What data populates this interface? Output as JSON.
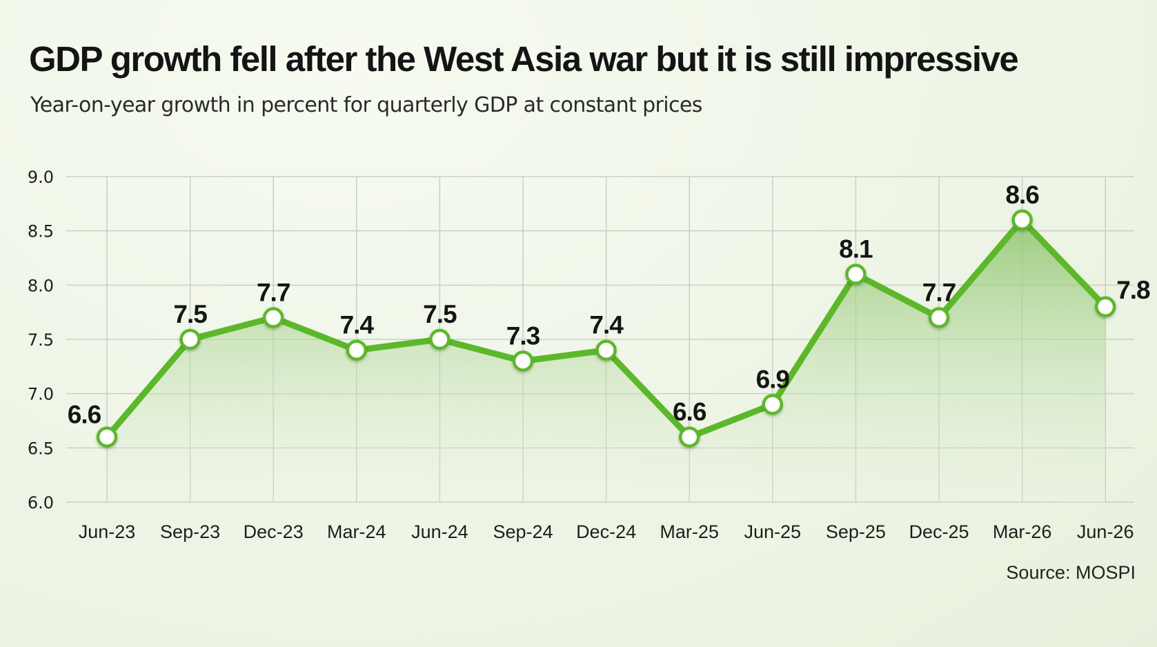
{
  "title": "GDP growth fell after the West Asia war but it is still impressive",
  "subtitle": "Year-on-year growth in percent for quarterly GDP at constant prices",
  "source": "Source: MOSPI",
  "colors": {
    "line": "#5cb82a",
    "marker_fill": "#ffffff",
    "area_top": "#8cc46a",
    "grid": "#c9cfc4"
  },
  "chart_data": {
    "type": "line",
    "categories": [
      "Jun-23",
      "Sep-23",
      "Dec-23",
      "Mar-24",
      "Jun-24",
      "Sep-24",
      "Dec-24",
      "Mar-25",
      "Jun-25",
      "Sep-25",
      "Dec-25",
      "Mar-26",
      "Jun-26"
    ],
    "series": [
      {
        "values": [
          6.6,
          7.5,
          7.7,
          7.4,
          7.5,
          7.3,
          7.4,
          6.6,
          6.9,
          8.1,
          7.7,
          8.6,
          7.8
        ]
      }
    ],
    "data_labels": [
      "6.6",
      "7.5",
      "7.7",
      "7.4",
      "7.5",
      "7.3",
      "7.4",
      "6.6",
      "6.9",
      "8.1",
      "7.7",
      "8.6",
      "7.8"
    ],
    "y_ticks": [
      "9.0",
      "8.5",
      "8.0",
      "7.5",
      "7.0",
      "6.5",
      "6.0"
    ],
    "ylim": [
      6.0,
      9.0
    ],
    "grid": true,
    "area_fill": true
  }
}
